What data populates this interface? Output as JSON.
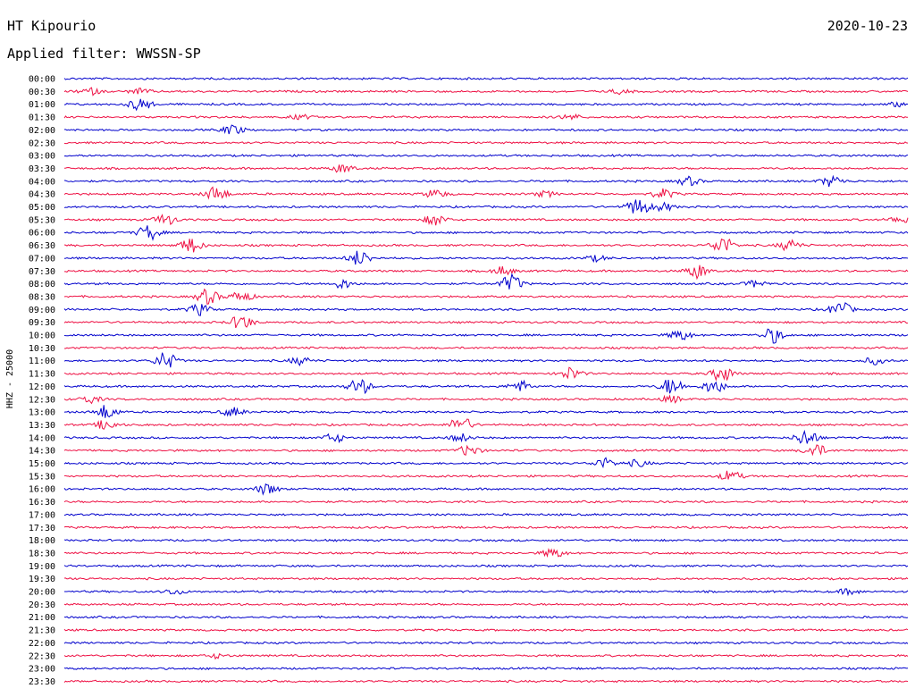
{
  "header": {
    "station": "HT Kipourio",
    "date": "2020-10-23",
    "filter": "Applied filter: WWSSN-SP"
  },
  "chart_data": {
    "type": "line",
    "ylabel": "HHZ - 25000",
    "colors": [
      "#0000cc",
      "#ee1144"
    ],
    "rows": [
      "00:00",
      "00:30",
      "01:00",
      "01:30",
      "02:00",
      "02:30",
      "03:00",
      "03:30",
      "04:00",
      "04:30",
      "05:00",
      "05:30",
      "06:00",
      "06:30",
      "07:00",
      "07:30",
      "08:00",
      "08:30",
      "09:00",
      "09:30",
      "10:00",
      "10:30",
      "11:00",
      "11:30",
      "12:00",
      "12:30",
      "13:00",
      "13:30",
      "14:00",
      "14:30",
      "15:00",
      "15:30",
      "16:00",
      "16:30",
      "17:00",
      "17:30",
      "18:00",
      "18:30",
      "19:00",
      "19:30",
      "20:00",
      "20:30",
      "21:00",
      "21:30",
      "22:00",
      "22:30",
      "23:00",
      "23:30"
    ],
    "events": [
      [
        1,
        0.03,
        0.6
      ],
      [
        1,
        0.09,
        0.5
      ],
      [
        1,
        0.66,
        0.4
      ],
      [
        2,
        0.09,
        1.2
      ],
      [
        2,
        0.99,
        0.4
      ],
      [
        3,
        0.28,
        0.4
      ],
      [
        3,
        0.6,
        0.5
      ],
      [
        4,
        0.2,
        0.9
      ],
      [
        7,
        0.33,
        0.8
      ],
      [
        8,
        0.74,
        0.8
      ],
      [
        8,
        0.91,
        1.0
      ],
      [
        9,
        0.18,
        1.4
      ],
      [
        9,
        0.44,
        0.8
      ],
      [
        9,
        0.57,
        0.5
      ],
      [
        9,
        0.71,
        0.9
      ],
      [
        10,
        0.68,
        1.6
      ],
      [
        10,
        0.71,
        0.7
      ],
      [
        11,
        0.12,
        1.0
      ],
      [
        11,
        0.44,
        1.0
      ],
      [
        11,
        0.99,
        0.6
      ],
      [
        12,
        0.1,
        1.4
      ],
      [
        13,
        0.15,
        1.4
      ],
      [
        13,
        0.78,
        1.6
      ],
      [
        13,
        0.86,
        1.0
      ],
      [
        14,
        0.35,
        1.4
      ],
      [
        14,
        0.63,
        0.5
      ],
      [
        15,
        0.52,
        0.8
      ],
      [
        15,
        0.75,
        1.3
      ],
      [
        16,
        0.33,
        0.8
      ],
      [
        16,
        0.53,
        1.6
      ],
      [
        16,
        0.82,
        0.6
      ],
      [
        17,
        0.17,
        1.4
      ],
      [
        17,
        0.21,
        1.0
      ],
      [
        18,
        0.16,
        1.0
      ],
      [
        18,
        0.92,
        1.4
      ],
      [
        19,
        0.21,
        1.4
      ],
      [
        20,
        0.73,
        1.0
      ],
      [
        20,
        0.84,
        1.4
      ],
      [
        22,
        0.12,
        1.6
      ],
      [
        22,
        0.28,
        0.7
      ],
      [
        22,
        0.96,
        0.6
      ],
      [
        23,
        0.6,
        1.1
      ],
      [
        23,
        0.78,
        1.5
      ],
      [
        24,
        0.35,
        1.5
      ],
      [
        24,
        0.54,
        1.0
      ],
      [
        24,
        0.72,
        1.6
      ],
      [
        24,
        0.77,
        1.3
      ],
      [
        25,
        0.03,
        0.7
      ],
      [
        25,
        0.72,
        0.6
      ],
      [
        26,
        0.05,
        1.3
      ],
      [
        26,
        0.2,
        0.8
      ],
      [
        27,
        0.05,
        0.9
      ],
      [
        27,
        0.47,
        1.5
      ],
      [
        28,
        0.32,
        0.8
      ],
      [
        28,
        0.47,
        0.7
      ],
      [
        28,
        0.88,
        1.6
      ],
      [
        29,
        0.48,
        1.0
      ],
      [
        29,
        0.89,
        1.2
      ],
      [
        30,
        0.64,
        0.9
      ],
      [
        30,
        0.68,
        0.6
      ],
      [
        31,
        0.79,
        1.0
      ],
      [
        32,
        0.24,
        1.0
      ],
      [
        37,
        0.58,
        0.9
      ],
      [
        40,
        0.13,
        0.5
      ],
      [
        40,
        0.93,
        0.5
      ],
      [
        45,
        0.18,
        0.4
      ]
    ]
  }
}
